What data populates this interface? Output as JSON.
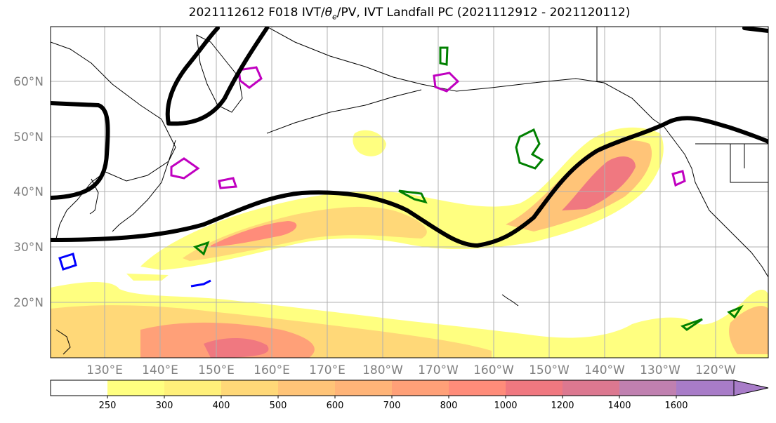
{
  "title": {
    "prefix": "2021112612 F018 IVT/",
    "theta": "θ",
    "theta_sub": "e",
    "suffix": "/PV, IVT Landfall PC (2021112912 - 2021120112)"
  },
  "lat_labels": [
    "60°N",
    "50°N",
    "40°N",
    "30°N",
    "20°N"
  ],
  "lon_labels": [
    "130°E",
    "140°E",
    "150°E",
    "160°E",
    "170°E",
    "180°W",
    "170°W",
    "160°W",
    "150°W",
    "140°W",
    "130°W",
    "120°W"
  ],
  "colorbar": {
    "levels": [
      "250",
      "300",
      "400",
      "500",
      "600",
      "700",
      "800",
      "1000",
      "1200",
      "1400",
      "1600"
    ],
    "colors": [
      "#ffffff",
      "#ffff80",
      "#fff07a",
      "#ffd878",
      "#ffc478",
      "#ffb478",
      "#ffa078",
      "#ff8c7a",
      "#f07880",
      "#dc7890",
      "#c080b0",
      "#a87cc8"
    ]
  },
  "colors": {
    "land_outline": "#000000",
    "theta_e_contour": "#000000",
    "pv_positive": "#008000",
    "pv_negative": "#0000ff",
    "pv_high": "#c000c0",
    "grid": "#b0b0b0"
  }
}
